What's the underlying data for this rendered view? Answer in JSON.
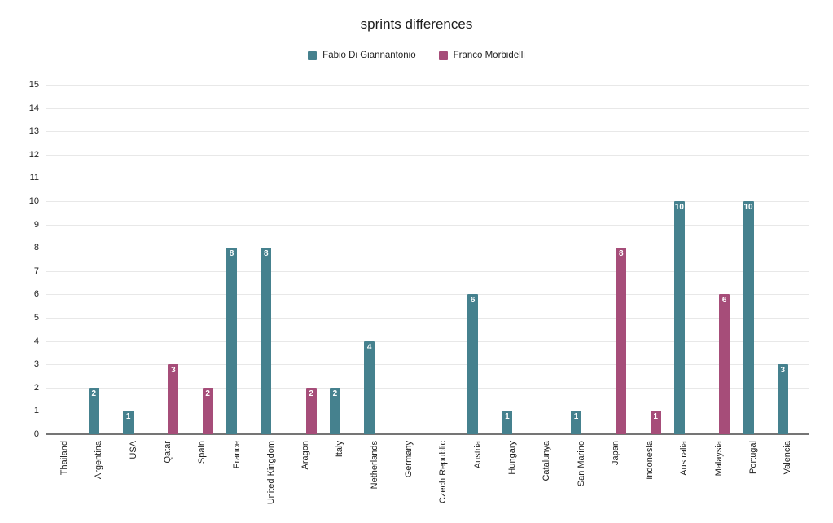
{
  "chart_data": {
    "type": "bar",
    "title": "sprints differences",
    "categories": [
      "Thailand",
      "Argentina",
      "USA",
      "Qatar",
      "Spain",
      "France",
      "United Kingdom",
      "Aragon",
      "Italy",
      "Netherlands",
      "Germany",
      "Czech Republic",
      "Austria",
      "Hungary",
      "Catalunya",
      "San Marino",
      "Japan",
      "Indonesia",
      "Australia",
      "Malaysia",
      "Portugal",
      "Valencia"
    ],
    "series": [
      {
        "name": "Fabio Di Giannantonio",
        "color": "#45818e",
        "values": [
          0,
          2,
          1,
          0,
          0,
          8,
          8,
          0,
          2,
          4,
          0,
          0,
          6,
          1,
          0,
          1,
          0,
          0,
          10,
          0,
          10,
          3
        ]
      },
      {
        "name": "Franco Morbidelli",
        "color": "#a64d79",
        "values": [
          0,
          0,
          0,
          3,
          2,
          0,
          0,
          2,
          0,
          0,
          0,
          0,
          0,
          0,
          0,
          0,
          8,
          1,
          0,
          6,
          0,
          0
        ]
      }
    ],
    "yticks": [
      0,
      1,
      2,
      3,
      4,
      5,
      6,
      7,
      8,
      9,
      10,
      11,
      12,
      13,
      14,
      15
    ],
    "ylim": [
      0,
      15
    ],
    "grid": true,
    "legend_position": "top",
    "bar_labels": "white, inside top of bar",
    "colors": {
      "grid": "#e8e8e8",
      "axis_baseline": "#757575",
      "background": "#ffffff"
    }
  }
}
